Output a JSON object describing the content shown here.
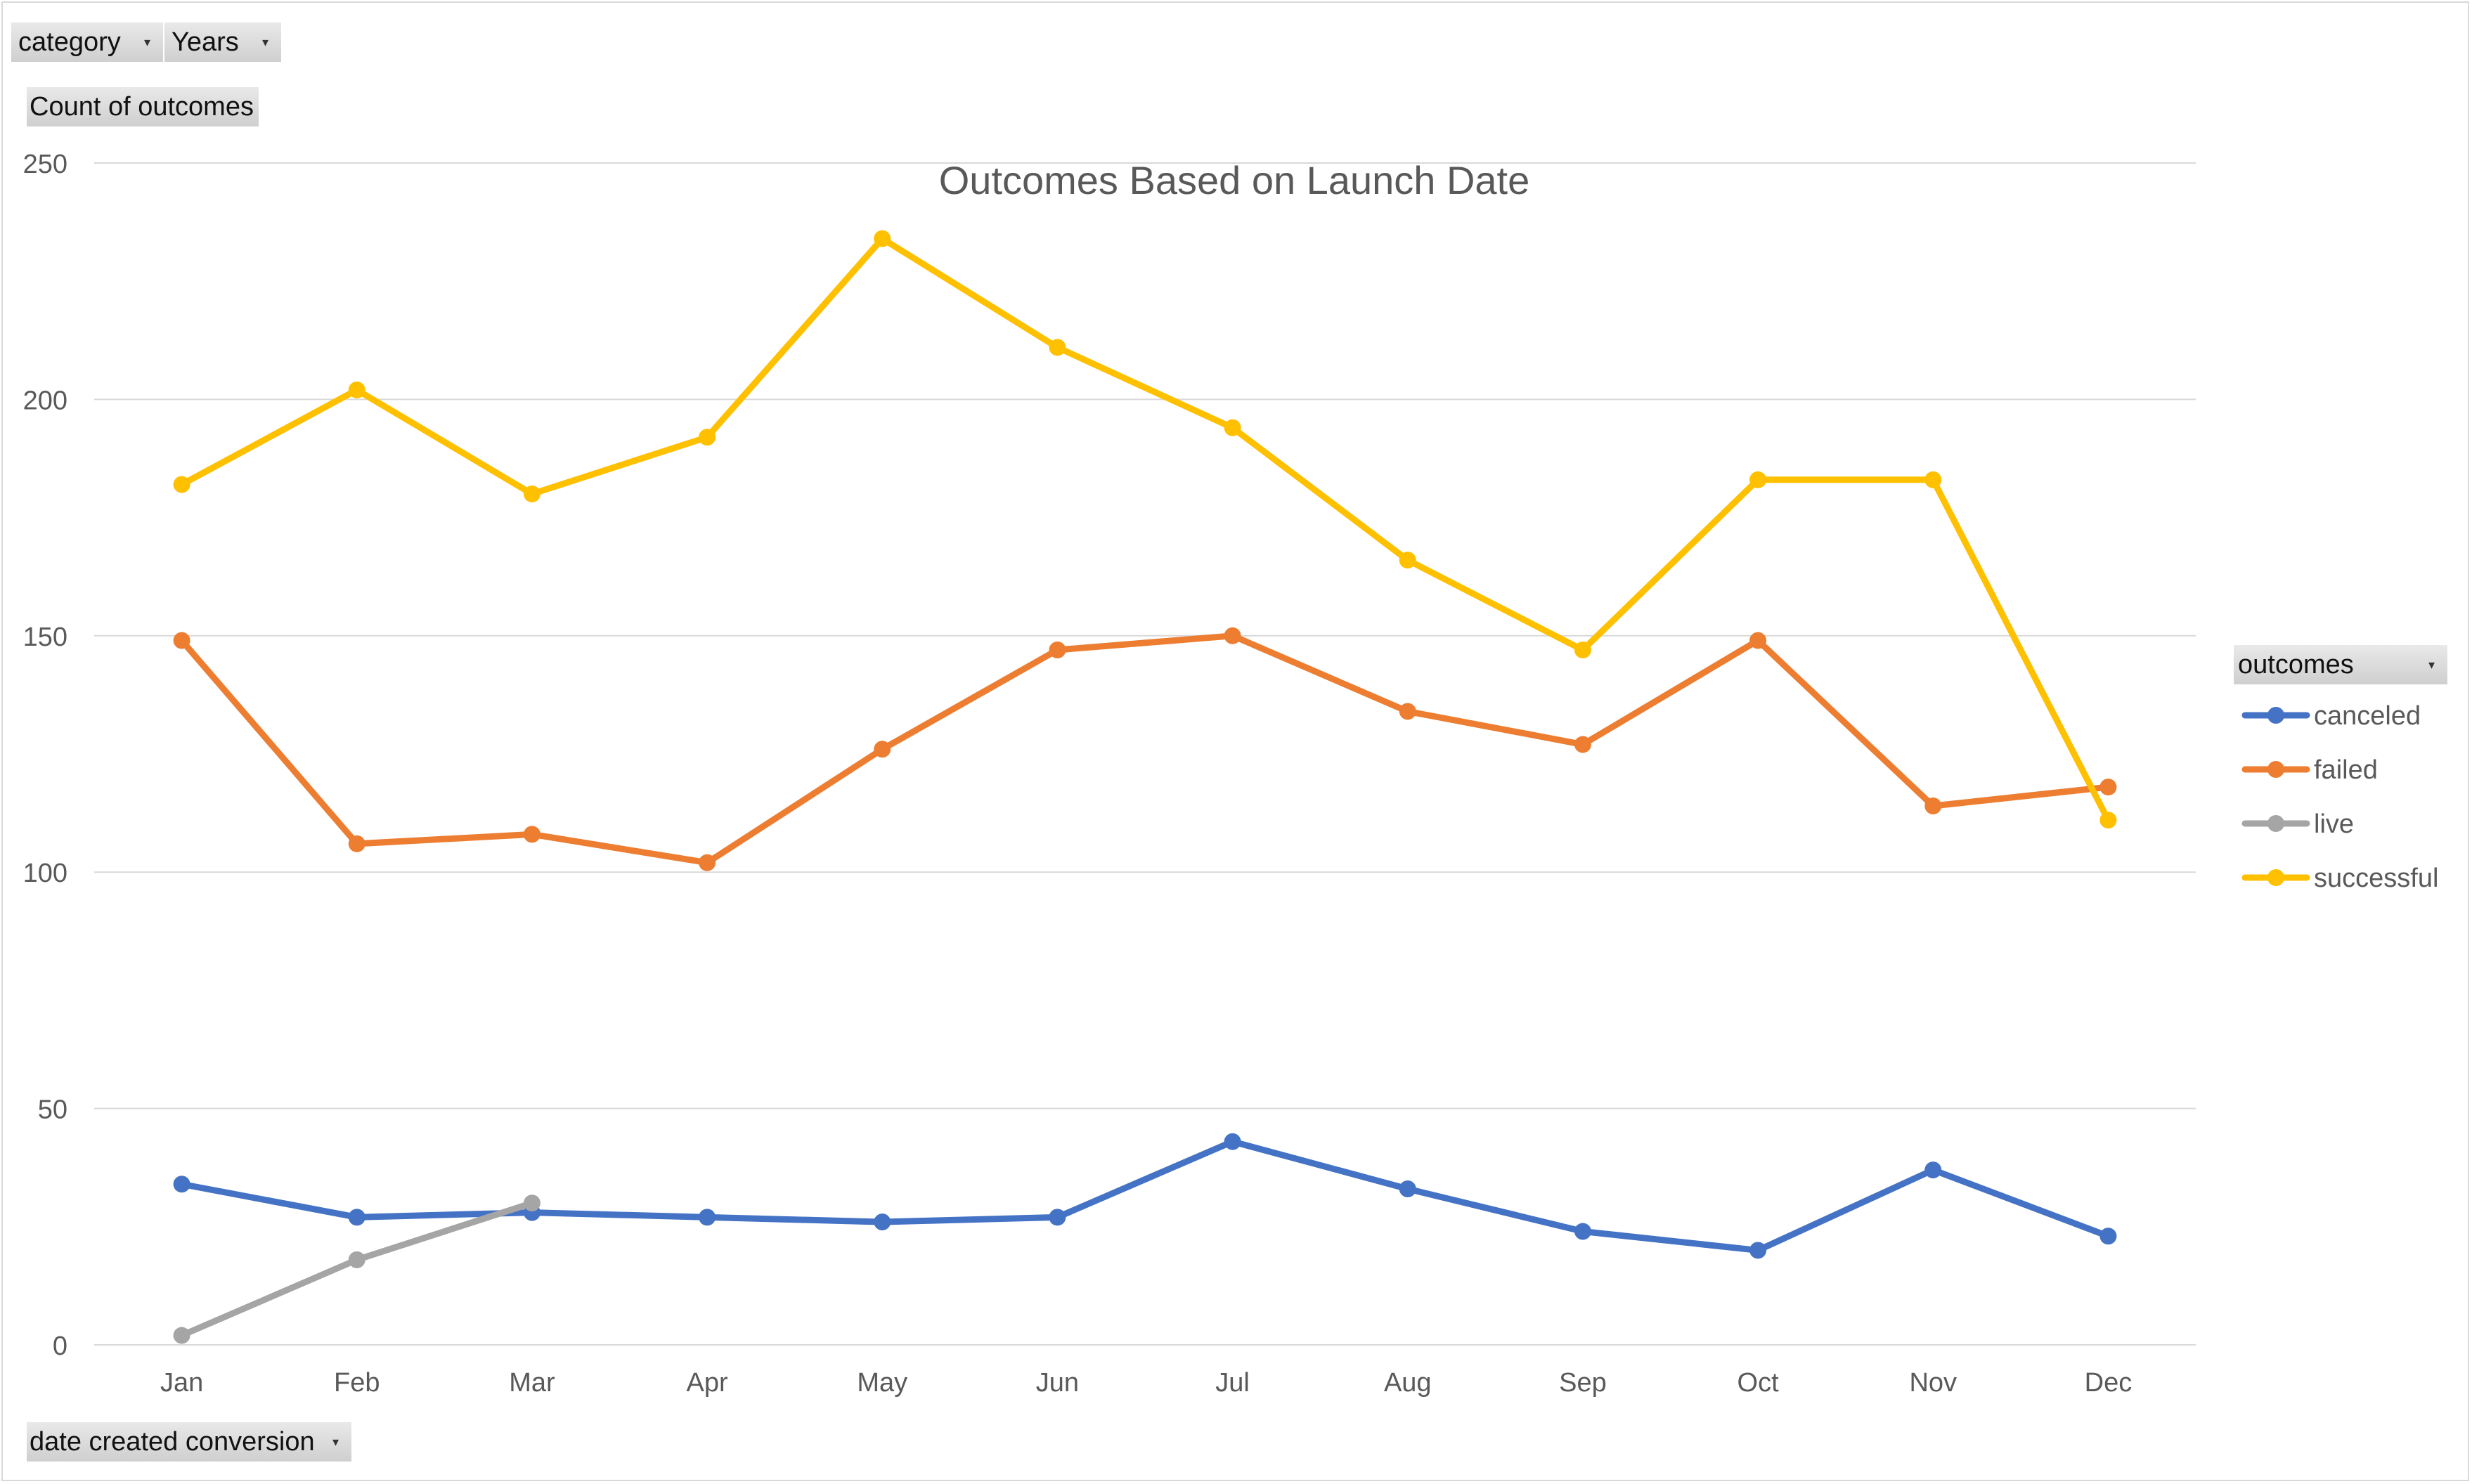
{
  "pivot": {
    "filters": [
      {
        "label": "category"
      },
      {
        "label": "Years"
      }
    ],
    "value_field": "Count of outcomes",
    "axis_field": "date created conversion",
    "legend_field": "outcomes"
  },
  "colors": {
    "canceled": "#4472C4",
    "failed": "#ED7D31",
    "live": "#A5A5A5",
    "successful": "#FFC000",
    "gridline": "#d9d9d9",
    "axis_text": "#595959"
  },
  "chart_data": {
    "type": "line",
    "title": "Outcomes Based on Launch Date",
    "xlabel": "",
    "ylabel": "",
    "ylim": [
      0,
      250
    ],
    "yticks": [
      0,
      50,
      100,
      150,
      200,
      250
    ],
    "grid": true,
    "legend_position": "right",
    "categories": [
      "Jan",
      "Feb",
      "Mar",
      "Apr",
      "May",
      "Jun",
      "Jul",
      "Aug",
      "Sep",
      "Oct",
      "Nov",
      "Dec"
    ],
    "series": [
      {
        "name": "canceled",
        "values": [
          34,
          27,
          28,
          27,
          26,
          27,
          43,
          33,
          24,
          20,
          37,
          23
        ]
      },
      {
        "name": "failed",
        "values": [
          149,
          106,
          108,
          102,
          126,
          147,
          150,
          134,
          127,
          149,
          114,
          118
        ]
      },
      {
        "name": "live",
        "values": [
          2,
          18,
          30,
          null,
          null,
          null,
          null,
          null,
          null,
          null,
          null,
          null
        ]
      },
      {
        "name": "successful",
        "values": [
          182,
          202,
          180,
          192,
          234,
          211,
          194,
          166,
          147,
          183,
          183,
          111
        ]
      }
    ]
  }
}
